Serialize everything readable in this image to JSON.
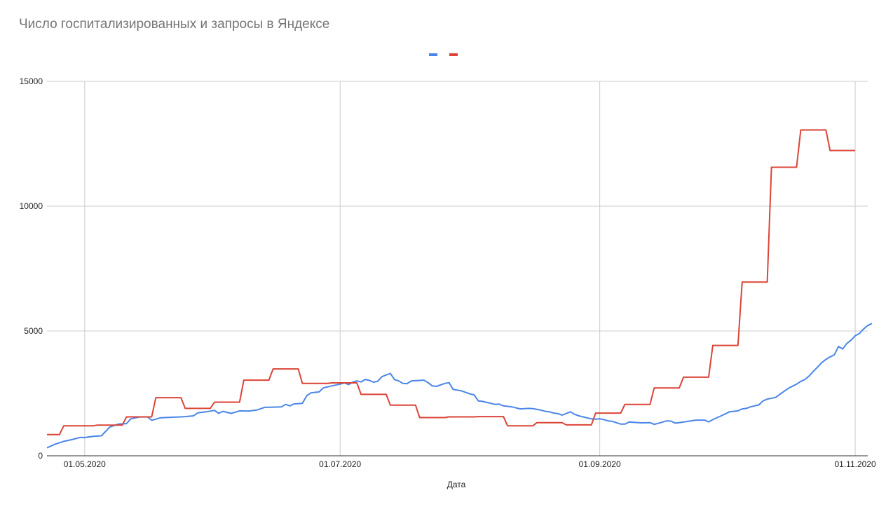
{
  "chart_data": {
    "type": "line",
    "title": "Число госпитализированных и запросы в Яндексе",
    "xlabel": "Дата",
    "ylabel": "",
    "ylim": [
      0,
      15000
    ],
    "y_ticks": [
      "0",
      "5000",
      "10000",
      "15000"
    ],
    "y_tick_values": [
      0,
      5000,
      10000,
      15000
    ],
    "x_ticks": [
      "01.05.2020",
      "01.07.2020",
      "01.09.2020",
      "01.11.2020"
    ],
    "x_tick_dates": [
      "2020-05-01",
      "2020-07-01",
      "2020-09-01",
      "2020-11-01"
    ],
    "xlim": [
      "2020-04-22",
      "2020-11-04"
    ],
    "grid": true,
    "legend": "top-center",
    "series": [
      {
        "color": "#4a86e8",
        "points": [
          [
            "2020-04-22",
            320
          ],
          [
            "2020-04-24",
            470
          ],
          [
            "2020-04-26",
            580
          ],
          [
            "2020-04-28",
            650
          ],
          [
            "2020-04-30",
            740
          ],
          [
            "2020-05-01",
            730
          ],
          [
            "2020-05-03",
            780
          ],
          [
            "2020-05-05",
            800
          ],
          [
            "2020-05-07",
            1150
          ],
          [
            "2020-05-09",
            1270
          ],
          [
            "2020-05-11",
            1290
          ],
          [
            "2020-05-12",
            1480
          ],
          [
            "2020-05-14",
            1550
          ],
          [
            "2020-05-16",
            1560
          ],
          [
            "2020-05-17",
            1420
          ],
          [
            "2020-05-19",
            1520
          ],
          [
            "2020-05-21",
            1540
          ],
          [
            "2020-05-23",
            1550
          ],
          [
            "2020-05-25",
            1570
          ],
          [
            "2020-05-27",
            1600
          ],
          [
            "2020-05-28",
            1720
          ],
          [
            "2020-05-30",
            1760
          ],
          [
            "2020-06-01",
            1820
          ],
          [
            "2020-06-02",
            1700
          ],
          [
            "2020-06-03",
            1780
          ],
          [
            "2020-06-05",
            1700
          ],
          [
            "2020-06-07",
            1800
          ],
          [
            "2020-06-09",
            1790
          ],
          [
            "2020-06-11",
            1830
          ],
          [
            "2020-06-13",
            1940
          ],
          [
            "2020-06-15",
            1950
          ],
          [
            "2020-06-17",
            1960
          ],
          [
            "2020-06-18",
            2060
          ],
          [
            "2020-06-19",
            2000
          ],
          [
            "2020-06-20",
            2080
          ],
          [
            "2020-06-22",
            2100
          ],
          [
            "2020-06-23",
            2400
          ],
          [
            "2020-06-24",
            2520
          ],
          [
            "2020-06-26",
            2560
          ],
          [
            "2020-06-27",
            2720
          ],
          [
            "2020-06-29",
            2800
          ],
          [
            "2020-07-01",
            2870
          ],
          [
            "2020-07-02",
            2920
          ],
          [
            "2020-07-03",
            2850
          ],
          [
            "2020-07-04",
            2950
          ],
          [
            "2020-07-05",
            3000
          ],
          [
            "2020-07-06",
            2960
          ],
          [
            "2020-07-07",
            3060
          ],
          [
            "2020-07-08",
            3020
          ],
          [
            "2020-07-09",
            2950
          ],
          [
            "2020-07-10",
            2990
          ],
          [
            "2020-07-11",
            3170
          ],
          [
            "2020-07-13",
            3300
          ],
          [
            "2020-07-14",
            3050
          ],
          [
            "2020-07-15",
            3000
          ],
          [
            "2020-07-16",
            2900
          ],
          [
            "2020-07-17",
            2890
          ],
          [
            "2020-07-18",
            3000
          ],
          [
            "2020-07-21",
            3030
          ],
          [
            "2020-07-22",
            2930
          ],
          [
            "2020-07-23",
            2800
          ],
          [
            "2020-07-24",
            2780
          ],
          [
            "2020-07-26",
            2900
          ],
          [
            "2020-07-27",
            2930
          ],
          [
            "2020-07-28",
            2660
          ],
          [
            "2020-07-30",
            2600
          ],
          [
            "2020-07-31",
            2540
          ],
          [
            "2020-08-01",
            2480
          ],
          [
            "2020-08-02",
            2440
          ],
          [
            "2020-08-03",
            2200
          ],
          [
            "2020-08-04",
            2180
          ],
          [
            "2020-08-06",
            2100
          ],
          [
            "2020-08-07",
            2060
          ],
          [
            "2020-08-08",
            2070
          ],
          [
            "2020-08-09",
            2000
          ],
          [
            "2020-08-11",
            1960
          ],
          [
            "2020-08-13",
            1880
          ],
          [
            "2020-08-15",
            1900
          ],
          [
            "2020-08-16",
            1890
          ],
          [
            "2020-08-18",
            1830
          ],
          [
            "2020-08-19",
            1780
          ],
          [
            "2020-08-20",
            1760
          ],
          [
            "2020-08-21",
            1710
          ],
          [
            "2020-08-22",
            1690
          ],
          [
            "2020-08-23",
            1630
          ],
          [
            "2020-08-25",
            1760
          ],
          [
            "2020-08-26",
            1660
          ],
          [
            "2020-08-27",
            1600
          ],
          [
            "2020-08-28",
            1560
          ],
          [
            "2020-08-30",
            1480
          ],
          [
            "2020-08-31",
            1470
          ],
          [
            "2020-09-01",
            1480
          ],
          [
            "2020-09-02",
            1450
          ],
          [
            "2020-09-03",
            1400
          ],
          [
            "2020-09-04",
            1380
          ],
          [
            "2020-09-06",
            1270
          ],
          [
            "2020-09-07",
            1270
          ],
          [
            "2020-09-08",
            1350
          ],
          [
            "2020-09-09",
            1340
          ],
          [
            "2020-09-11",
            1320
          ],
          [
            "2020-09-13",
            1330
          ],
          [
            "2020-09-14",
            1260
          ],
          [
            "2020-09-15",
            1300
          ],
          [
            "2020-09-17",
            1400
          ],
          [
            "2020-09-18",
            1390
          ],
          [
            "2020-09-19",
            1310
          ],
          [
            "2020-09-20",
            1330
          ],
          [
            "2020-09-22",
            1380
          ],
          [
            "2020-09-24",
            1430
          ],
          [
            "2020-09-26",
            1430
          ],
          [
            "2020-09-27",
            1360
          ],
          [
            "2020-09-28",
            1450
          ],
          [
            "2020-09-30",
            1600
          ],
          [
            "2020-10-02",
            1760
          ],
          [
            "2020-10-04",
            1800
          ],
          [
            "2020-10-05",
            1880
          ],
          [
            "2020-10-06",
            1900
          ],
          [
            "2020-10-07",
            1960
          ],
          [
            "2020-10-09",
            2040
          ],
          [
            "2020-10-10",
            2200
          ],
          [
            "2020-10-11",
            2270
          ],
          [
            "2020-10-13",
            2340
          ],
          [
            "2020-10-14",
            2460
          ],
          [
            "2020-10-16",
            2700
          ],
          [
            "2020-10-18",
            2870
          ],
          [
            "2020-10-19",
            2980
          ],
          [
            "2020-10-20",
            3060
          ],
          [
            "2020-10-21",
            3200
          ],
          [
            "2020-10-22",
            3380
          ],
          [
            "2020-10-23",
            3550
          ],
          [
            "2020-10-24",
            3730
          ],
          [
            "2020-10-25",
            3860
          ],
          [
            "2020-10-26",
            3960
          ],
          [
            "2020-10-27",
            4040
          ],
          [
            "2020-10-28",
            4380
          ],
          [
            "2020-10-29",
            4280
          ],
          [
            "2020-10-30",
            4500
          ],
          [
            "2020-10-31",
            4630
          ],
          [
            "2020-11-01",
            4810
          ],
          [
            "2020-11-02",
            4900
          ],
          [
            "2020-11-03",
            5080
          ],
          [
            "2020-11-04",
            5220
          ],
          [
            "2020-11-05",
            5300
          ]
        ]
      },
      {
        "color": "#db4437",
        "points": [
          [
            "2020-04-22",
            850
          ],
          [
            "2020-04-25",
            850
          ],
          [
            "2020-04-26",
            1200
          ],
          [
            "2020-05-03",
            1200
          ],
          [
            "2020-05-04",
            1230
          ],
          [
            "2020-05-10",
            1230
          ],
          [
            "2020-05-11",
            1560
          ],
          [
            "2020-05-17",
            1560
          ],
          [
            "2020-05-18",
            2330
          ],
          [
            "2020-05-24",
            2330
          ],
          [
            "2020-05-25",
            1900
          ],
          [
            "2020-05-31",
            1900
          ],
          [
            "2020-06-01",
            2150
          ],
          [
            "2020-06-07",
            2150
          ],
          [
            "2020-06-08",
            3030
          ],
          [
            "2020-06-14",
            3030
          ],
          [
            "2020-06-15",
            3480
          ],
          [
            "2020-06-21",
            3480
          ],
          [
            "2020-06-22",
            2900
          ],
          [
            "2020-06-28",
            2900
          ],
          [
            "2020-06-29",
            2920
          ],
          [
            "2020-07-05",
            2920
          ],
          [
            "2020-07-06",
            2460
          ],
          [
            "2020-07-12",
            2460
          ],
          [
            "2020-07-13",
            2030
          ],
          [
            "2020-07-19",
            2030
          ],
          [
            "2020-07-20",
            1530
          ],
          [
            "2020-07-26",
            1530
          ],
          [
            "2020-07-27",
            1560
          ],
          [
            "2020-08-02",
            1560
          ],
          [
            "2020-08-03",
            1570
          ],
          [
            "2020-08-09",
            1570
          ],
          [
            "2020-08-10",
            1200
          ],
          [
            "2020-08-16",
            1200
          ],
          [
            "2020-08-17",
            1330
          ],
          [
            "2020-08-23",
            1330
          ],
          [
            "2020-08-24",
            1240
          ],
          [
            "2020-08-30",
            1240
          ],
          [
            "2020-08-31",
            1710
          ],
          [
            "2020-09-06",
            1710
          ],
          [
            "2020-09-07",
            2060
          ],
          [
            "2020-09-13",
            2060
          ],
          [
            "2020-09-14",
            2720
          ],
          [
            "2020-09-20",
            2720
          ],
          [
            "2020-09-21",
            3150
          ],
          [
            "2020-09-27",
            3150
          ],
          [
            "2020-09-28",
            4420
          ],
          [
            "2020-10-04",
            4420
          ],
          [
            "2020-10-05",
            6960
          ],
          [
            "2020-10-11",
            6960
          ],
          [
            "2020-10-12",
            11560
          ],
          [
            "2020-10-18",
            11560
          ],
          [
            "2020-10-19",
            13050
          ],
          [
            "2020-10-25",
            13050
          ],
          [
            "2020-10-26",
            12230
          ],
          [
            "2020-11-01",
            12230
          ]
        ]
      }
    ]
  }
}
